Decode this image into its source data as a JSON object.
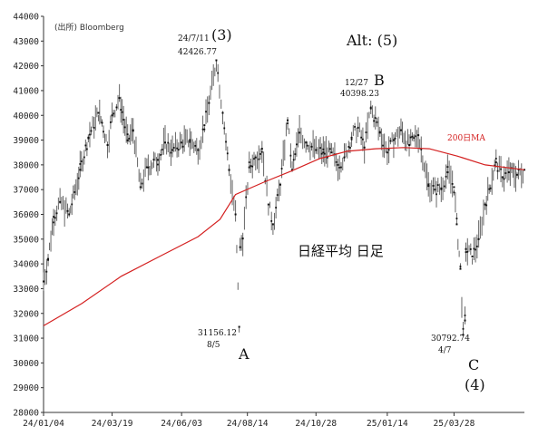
{
  "chart_data": {
    "type": "line",
    "source": "(出所) Bloomberg",
    "title": "日経平均 日足",
    "ylim": [
      28000,
      44000
    ],
    "y_ticks": [
      28000,
      29000,
      30000,
      31000,
      32000,
      33000,
      34000,
      35000,
      36000,
      37000,
      38000,
      39000,
      40000,
      41000,
      42000,
      43000,
      44000
    ],
    "y_tick_labels": [
      "28000",
      "29000",
      "30000",
      "31000",
      "32000",
      "33000",
      "34000",
      "35000",
      "36000",
      "37000",
      "38000",
      "39000",
      "40000",
      "41000",
      "42000",
      "43000",
      "44000"
    ],
    "x_start": "2024-01-04",
    "x_end": "2025-06-13",
    "x_ticks": [
      "2024-01-04",
      "2024-03-19",
      "2024-06-03",
      "2024-08-14",
      "2024-10-28",
      "2025-01-14",
      "2025-03-28"
    ],
    "x_tick_labels": [
      "24/01/04",
      "24/03/19",
      "24/06/03",
      "24/08/14",
      "24/10/28",
      "25/01/14",
      "25/03/28"
    ],
    "grid": false,
    "series": [
      {
        "name": "",
        "color": "#555555",
        "points": [
          [
            "2024-01-04",
            33290
          ],
          [
            "2024-01-09",
            34200
          ],
          [
            "2024-01-15",
            35900
          ],
          [
            "2024-01-22",
            36500
          ],
          [
            "2024-02-01",
            36000
          ],
          [
            "2024-02-13",
            37800
          ],
          [
            "2024-02-22",
            39100
          ],
          [
            "2024-03-04",
            40100
          ],
          [
            "2024-03-08",
            39700
          ],
          [
            "2024-03-14",
            38800
          ],
          [
            "2024-03-19",
            40000
          ],
          [
            "2024-03-27",
            40700
          ],
          [
            "2024-04-05",
            38990
          ],
          [
            "2024-04-11",
            39400
          ],
          [
            "2024-04-19",
            37100
          ],
          [
            "2024-04-26",
            37900
          ],
          [
            "2024-05-08",
            38200
          ],
          [
            "2024-05-16",
            38900
          ],
          [
            "2024-05-24",
            38600
          ],
          [
            "2024-06-03",
            38900
          ],
          [
            "2024-06-12",
            39000
          ],
          [
            "2024-06-21",
            38600
          ],
          [
            "2024-06-28",
            39600
          ],
          [
            "2024-07-03",
            40500
          ],
          [
            "2024-07-11",
            42224
          ],
          [
            "2024-07-18",
            40100
          ],
          [
            "2024-07-25",
            37800
          ],
          [
            "2024-08-01",
            36000
          ],
          [
            "2024-08-05",
            31458
          ],
          [
            "2024-08-06",
            34675
          ],
          [
            "2024-08-09",
            35025
          ],
          [
            "2024-08-16",
            37900
          ],
          [
            "2024-08-23",
            38300
          ],
          [
            "2024-08-30",
            38650
          ],
          [
            "2024-09-06",
            36400
          ],
          [
            "2024-09-11",
            35600
          ],
          [
            "2024-09-19",
            37200
          ],
          [
            "2024-09-27",
            39800
          ],
          [
            "2024-10-02",
            37800
          ],
          [
            "2024-10-10",
            39300
          ],
          [
            "2024-10-17",
            38900
          ],
          [
            "2024-10-28",
            38600
          ],
          [
            "2024-11-05",
            38500
          ],
          [
            "2024-11-14",
            38500
          ],
          [
            "2024-11-21",
            38000
          ],
          [
            "2024-11-28",
            38300
          ],
          [
            "2024-12-06",
            39100
          ],
          [
            "2024-12-13",
            39500
          ],
          [
            "2024-12-20",
            38700
          ],
          [
            "2024-12-27",
            40281
          ],
          [
            "2025-01-06",
            39300
          ],
          [
            "2025-01-14",
            38500
          ],
          [
            "2025-01-21",
            39000
          ],
          [
            "2025-01-29",
            39400
          ],
          [
            "2025-02-07",
            38800
          ],
          [
            "2025-02-17",
            39200
          ],
          [
            "2025-02-28",
            37150
          ],
          [
            "2025-03-07",
            37000
          ],
          [
            "2025-03-14",
            37050
          ],
          [
            "2025-03-21",
            37700
          ],
          [
            "2025-03-28",
            37100
          ],
          [
            "2025-03-31",
            35600
          ],
          [
            "2025-04-04",
            33800
          ],
          [
            "2025-04-07",
            31136
          ],
          [
            "2025-04-09",
            31714
          ],
          [
            "2025-04-10",
            34600
          ],
          [
            "2025-04-17",
            34300
          ],
          [
            "2025-04-24",
            35000
          ],
          [
            "2025-05-01",
            36400
          ],
          [
            "2025-05-13",
            38100
          ],
          [
            "2025-05-20",
            37500
          ],
          [
            "2025-05-27",
            37700
          ],
          [
            "2025-06-05",
            37600
          ],
          [
            "2025-06-13",
            37800
          ]
        ]
      },
      {
        "name": "200日MA",
        "color": "#d42020",
        "points": [
          [
            "2024-01-04",
            31500
          ],
          [
            "2024-02-15",
            32400
          ],
          [
            "2024-03-29",
            33500
          ],
          [
            "2024-05-10",
            34300
          ],
          [
            "2024-06-21",
            35100
          ],
          [
            "2024-07-15",
            35800
          ],
          [
            "2024-08-01",
            36800
          ],
          [
            "2024-09-01",
            37300
          ],
          [
            "2024-10-01",
            37750
          ],
          [
            "2024-11-01",
            38250
          ],
          [
            "2024-12-01",
            38550
          ],
          [
            "2025-01-01",
            38650
          ],
          [
            "2025-02-01",
            38700
          ],
          [
            "2025-03-01",
            38650
          ],
          [
            "2025-04-01",
            38350
          ],
          [
            "2025-05-01",
            38000
          ],
          [
            "2025-06-13",
            37800
          ]
        ]
      }
    ],
    "annotations": {
      "peak_date": "24/7/11",
      "peak_value": "42426.77",
      "wave3": "(3)",
      "alt5": "Alt: (5)",
      "b_date": "12/27",
      "b_value": "40398.23",
      "b_label": "B",
      "a_value": "31156.12",
      "a_date": "8/5",
      "a_label": "A",
      "c_value": "30792.74",
      "c_date": "4/7",
      "c_label": "C",
      "wave4": "(4)",
      "ma_label": "200日MA"
    },
    "anchors": [
      {
        "key": "peak",
        "x": "2024-07-11",
        "y": 42400
      },
      {
        "key": "b",
        "x": "2024-12-27",
        "y": 40400
      },
      {
        "key": "a",
        "x": "2024-08-05",
        "y": 31200
      },
      {
        "key": "c",
        "x": "2025-04-07",
        "y": 30800
      },
      {
        "key": "ma",
        "x": "2025-02-01",
        "y": 38700
      }
    ]
  }
}
